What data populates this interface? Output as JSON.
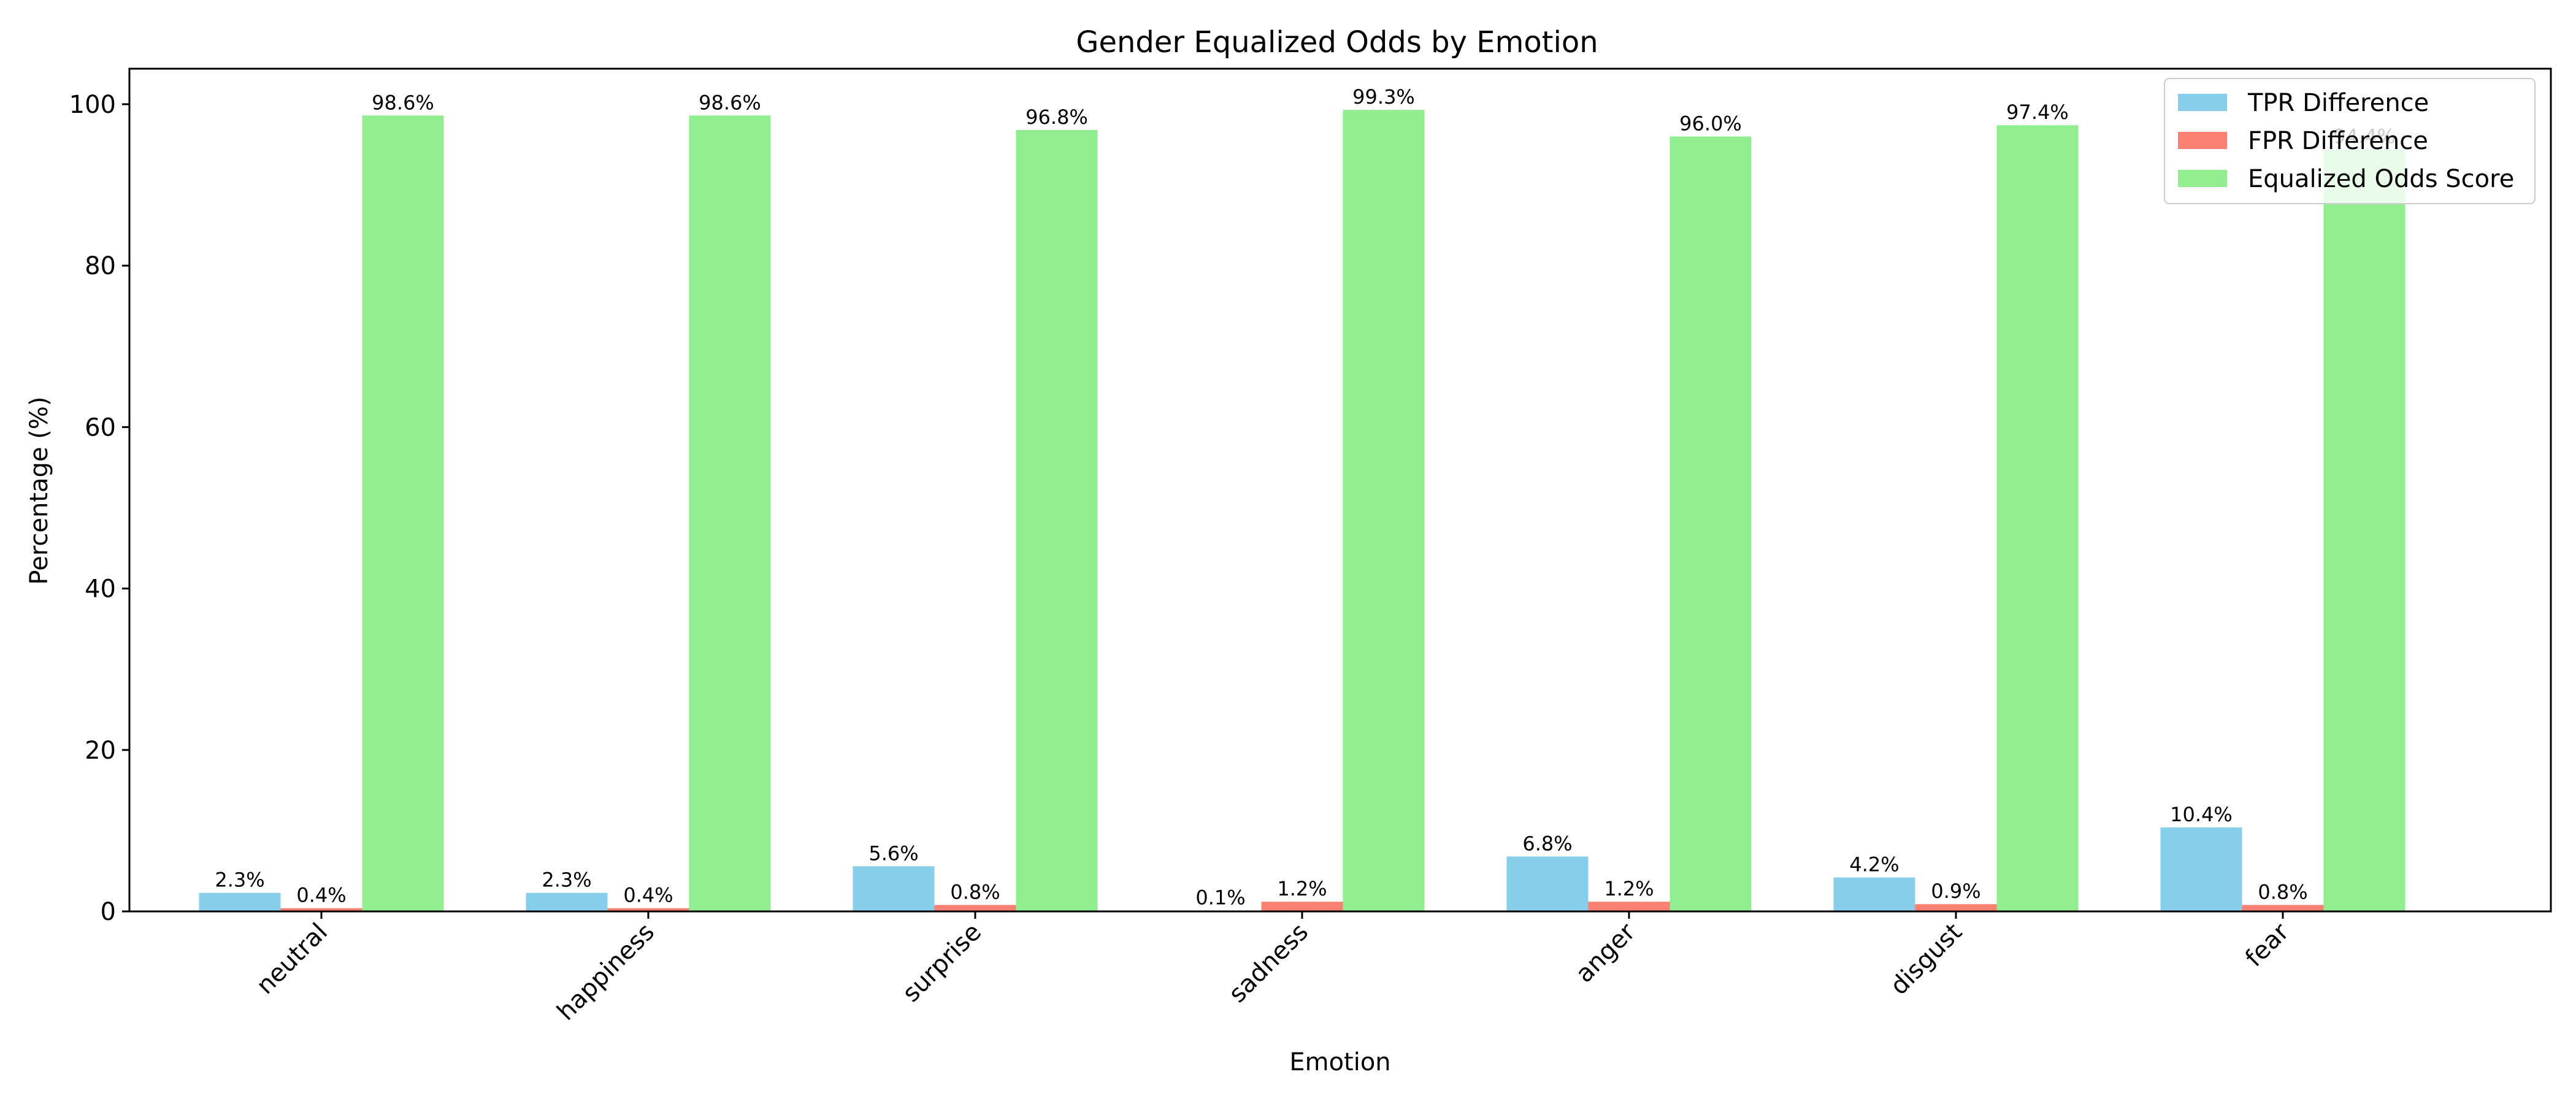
{
  "chart_data": {
    "type": "bar",
    "title": "Gender Equalized Odds by Emotion",
    "xlabel": "Emotion",
    "ylabel": "Percentage (%)",
    "ylim": [
      0,
      104.4
    ],
    "yticks": [
      0,
      20,
      40,
      60,
      80,
      100
    ],
    "grid": false,
    "legend_position": "top-right",
    "categories": [
      "neutral",
      "happiness",
      "surprise",
      "sadness",
      "anger",
      "disgust",
      "fear"
    ],
    "series": [
      {
        "name": "TPR Difference",
        "color": "#87CEEB",
        "values": [
          2.3,
          2.3,
          5.6,
          0.1,
          6.8,
          4.2,
          10.4
        ],
        "labels": [
          "2.3%",
          "2.3%",
          "5.6%",
          "0.1%",
          "6.8%",
          "4.2%",
          "10.4%"
        ]
      },
      {
        "name": "FPR Difference",
        "color": "#FA8072",
        "values": [
          0.4,
          0.4,
          0.8,
          1.2,
          1.2,
          0.9,
          0.8
        ],
        "labels": [
          "0.4%",
          "0.4%",
          "0.8%",
          "1.2%",
          "1.2%",
          "0.9%",
          "0.8%"
        ]
      },
      {
        "name": "Equalized Odds Score",
        "color": "#90EE90",
        "values": [
          98.6,
          98.6,
          96.8,
          99.3,
          96.0,
          97.4,
          94.4
        ],
        "labels": [
          "98.6%",
          "98.6%",
          "96.8%",
          "99.3%",
          "96.0%",
          "97.4%",
          "94.4%"
        ]
      }
    ]
  }
}
